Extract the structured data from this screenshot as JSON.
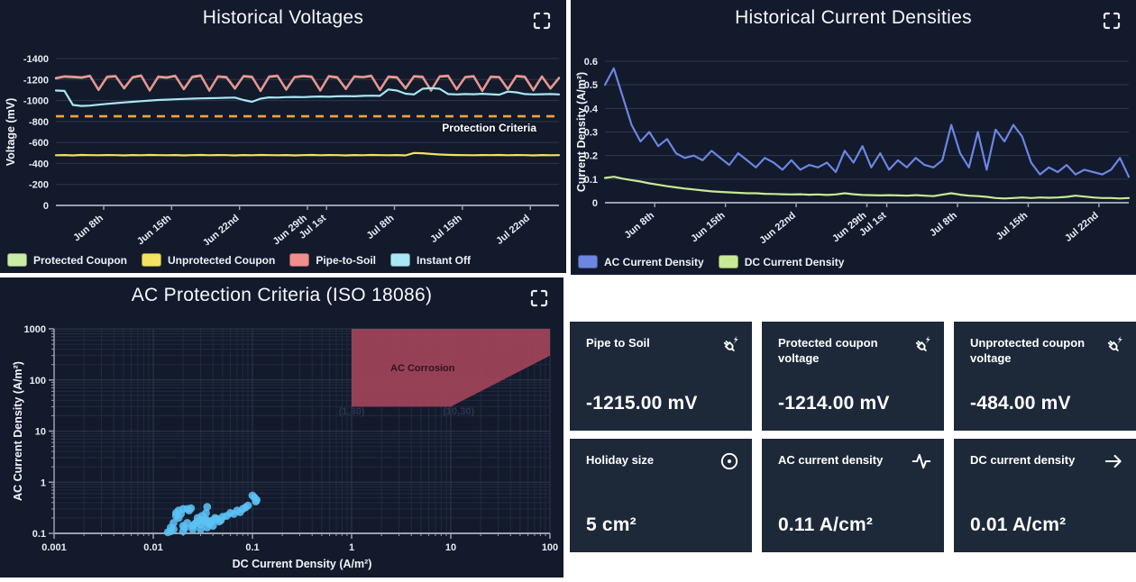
{
  "ui": {
    "page_bg": "#ffffff",
    "panel_bg": "#121a2c",
    "card_bg": "#1d2839",
    "grid_color": "#2e374c",
    "minor_grid_color": "#212a40",
    "axis_color": "#99a0b0"
  },
  "chart_data": [
    {
      "type": "line",
      "title": "Historical Voltages",
      "ylabel": "Voltage (mV)",
      "ytop": -1400,
      "ybottom": 0,
      "yticks": [
        {
          "v": -1400,
          "label": "-1400"
        },
        {
          "v": -1200,
          "label": "-1200"
        },
        {
          "v": -1000,
          "label": "-1000"
        },
        {
          "v": -800,
          "label": "-800"
        },
        {
          "v": -600,
          "label": "-600"
        },
        {
          "v": -400,
          "label": "-400"
        },
        {
          "v": -200,
          "label": "-200"
        },
        {
          "v": 0,
          "label": "0"
        }
      ],
      "xticks": [
        {
          "f": 0.095,
          "label": "Jun 8th"
        },
        {
          "f": 0.23,
          "label": "Jun 15th"
        },
        {
          "f": 0.365,
          "label": "Jun 22nd"
        },
        {
          "f": 0.5,
          "label": "Jun 29th"
        },
        {
          "f": 0.538,
          "label": "Jul 1st"
        },
        {
          "f": 0.673,
          "label": "Jul 8th"
        },
        {
          "f": 0.808,
          "label": "Jul 15th"
        },
        {
          "f": 0.943,
          "label": "Jul 22nd"
        }
      ],
      "threshold": {
        "value": -850,
        "label": "Protection Criteria",
        "color": "#f0a43c"
      },
      "series": [
        {
          "name": "Protected Coupon",
          "color": "#c9eca6",
          "values": [
            -1210,
            -1227,
            -1223,
            -1217,
            -1233,
            -1100,
            -1223,
            -1230,
            -1115,
            -1220,
            -1235,
            -1095,
            -1225,
            -1217,
            -1233,
            -1107,
            -1223,
            -1235,
            -1093,
            -1227,
            -1220,
            -1113,
            -1230,
            -1223,
            -1090,
            -1225,
            -1233,
            -1103,
            -1221,
            -1231,
            -1225,
            -1095,
            -1229,
            -1219,
            -1110,
            -1227,
            -1221,
            -1233,
            -1099,
            -1225,
            -1219,
            -1115,
            -1229,
            -1223,
            -1093,
            -1227,
            -1233,
            -1105,
            -1221,
            -1229,
            -1091,
            -1225,
            -1221,
            -1107,
            -1231,
            -1223,
            -1097,
            -1227,
            -1113,
            -1213
          ]
        },
        {
          "name": "Unprotected Coupon",
          "color": "#f3e25f",
          "values": [
            -478,
            -480,
            -477,
            -481,
            -479,
            -478,
            -480,
            -479,
            -477,
            -480,
            -478,
            -481,
            -479,
            -478,
            -480,
            -477,
            -479,
            -481,
            -478,
            -480,
            -479,
            -477,
            -480,
            -478,
            -481,
            -479,
            -478,
            -480,
            -477,
            -479,
            -481,
            -478,
            -480,
            -479,
            -477,
            -480,
            -478,
            -481,
            -479,
            -478,
            -480,
            -477,
            -500,
            -497,
            -490,
            -485,
            -482,
            -480,
            -479,
            -478,
            -480,
            -479,
            -481,
            -478,
            -480,
            -479,
            -477,
            -480,
            -478,
            -479
          ]
        },
        {
          "name": "Pipe-to-Soil",
          "color": "#f08d8d",
          "values": [
            -1215,
            -1232,
            -1228,
            -1222,
            -1238,
            -1105,
            -1228,
            -1235,
            -1120,
            -1225,
            -1240,
            -1100,
            -1230,
            -1222,
            -1238,
            -1112,
            -1228,
            -1240,
            -1098,
            -1232,
            -1225,
            -1118,
            -1235,
            -1228,
            -1095,
            -1230,
            -1238,
            -1108,
            -1226,
            -1236,
            -1230,
            -1100,
            -1234,
            -1224,
            -1115,
            -1232,
            -1226,
            -1238,
            -1104,
            -1230,
            -1224,
            -1120,
            -1234,
            -1228,
            -1098,
            -1232,
            -1238,
            -1110,
            -1226,
            -1234,
            -1096,
            -1230,
            -1226,
            -1112,
            -1236,
            -1228,
            -1102,
            -1232,
            -1118,
            -1218
          ]
        },
        {
          "name": "Instant Off",
          "color": "#a8e7f4",
          "values": [
            -1095,
            -1092,
            -958,
            -948,
            -952,
            -960,
            -968,
            -975,
            -982,
            -988,
            -994,
            -1000,
            -1005,
            -1008,
            -1012,
            -1015,
            -1018,
            -1020,
            -1022,
            -1024,
            -1026,
            -1028,
            -1005,
            -988,
            -1018,
            -1030,
            -1028,
            -1032,
            -1034,
            -1032,
            -1036,
            -1038,
            -1036,
            -1040,
            -1042,
            -1040,
            -1044,
            -1046,
            -1044,
            -1105,
            -1095,
            -1065,
            -1058,
            -1112,
            -1118,
            -1112,
            -1062,
            -1058,
            -1062,
            -1060,
            -1064,
            -1060,
            -1056,
            -1085,
            -1078,
            -1062,
            -1058,
            -1060,
            -1062,
            -1058
          ]
        }
      ]
    },
    {
      "type": "line",
      "title": "Historical Current Densities",
      "ylabel": "Current Density (A/m²)",
      "ytop": 0.6,
      "ybottom": 0,
      "yticks": [
        {
          "v": 0.6,
          "label": "0.6"
        },
        {
          "v": 0.5,
          "label": "0.5"
        },
        {
          "v": 0.4,
          "label": "0.4"
        },
        {
          "v": 0.3,
          "label": "0.3"
        },
        {
          "v": 0.2,
          "label": "0.2"
        },
        {
          "v": 0.1,
          "label": "0.1"
        },
        {
          "v": 0,
          "label": "0"
        }
      ],
      "xticks": [
        {
          "f": 0.095,
          "label": "Jun 8th"
        },
        {
          "f": 0.23,
          "label": "Jun 15th"
        },
        {
          "f": 0.365,
          "label": "Jun 22nd"
        },
        {
          "f": 0.5,
          "label": "Jun 29th"
        },
        {
          "f": 0.538,
          "label": "Jul 1st"
        },
        {
          "f": 0.673,
          "label": "Jul 8th"
        },
        {
          "f": 0.808,
          "label": "Jul 15th"
        },
        {
          "f": 0.943,
          "label": "Jul 22nd"
        }
      ],
      "threshold": null,
      "series": [
        {
          "name": "AC Current Density",
          "color": "#6c86e2",
          "values": [
            0.5,
            0.57,
            0.45,
            0.33,
            0.26,
            0.3,
            0.24,
            0.27,
            0.21,
            0.19,
            0.2,
            0.18,
            0.22,
            0.19,
            0.16,
            0.21,
            0.18,
            0.15,
            0.19,
            0.17,
            0.14,
            0.18,
            0.14,
            0.16,
            0.15,
            0.17,
            0.13,
            0.22,
            0.17,
            0.24,
            0.15,
            0.21,
            0.14,
            0.18,
            0.15,
            0.19,
            0.16,
            0.15,
            0.18,
            0.33,
            0.21,
            0.15,
            0.3,
            0.14,
            0.31,
            0.26,
            0.33,
            0.28,
            0.17,
            0.12,
            0.15,
            0.13,
            0.16,
            0.12,
            0.14,
            0.13,
            0.12,
            0.14,
            0.19,
            0.11
          ]
        },
        {
          "name": "DC Current Density",
          "color": "#c8ea94",
          "values": [
            0.105,
            0.11,
            0.102,
            0.096,
            0.09,
            0.082,
            0.076,
            0.07,
            0.065,
            0.06,
            0.056,
            0.052,
            0.048,
            0.046,
            0.044,
            0.042,
            0.04,
            0.04,
            0.038,
            0.037,
            0.036,
            0.035,
            0.036,
            0.034,
            0.035,
            0.033,
            0.035,
            0.04,
            0.036,
            0.033,
            0.032,
            0.031,
            0.032,
            0.031,
            0.03,
            0.032,
            0.03,
            0.028,
            0.034,
            0.04,
            0.034,
            0.03,
            0.028,
            0.025,
            0.02,
            0.018,
            0.02,
            0.022,
            0.02,
            0.022,
            0.021,
            0.022,
            0.025,
            0.03,
            0.026,
            0.022,
            0.02,
            0.02,
            0.018,
            0.02
          ]
        }
      ]
    },
    {
      "type": "scatter",
      "title": "AC Protection Criteria (ISO 18086)",
      "xlabel": "DC Current Density (A/m²)",
      "ylabel": "AC Current Density (A/m²)",
      "xlog": {
        "min": 0.001,
        "max": 100
      },
      "ylog": {
        "min": 0.1,
        "max": 1000
      },
      "xticks": [
        "0.001",
        "0.01",
        "0.1",
        "1",
        "10",
        "100"
      ],
      "yticks": [
        "0.1",
        "1",
        "10",
        "100",
        "1000"
      ],
      "region": {
        "label": "AC Corrosion",
        "color": "#a8455c",
        "points": [
          [
            1,
            30
          ],
          [
            1,
            1000
          ],
          [
            100,
            1000
          ],
          [
            100,
            300
          ],
          [
            10,
            30
          ]
        ]
      },
      "annotations": [
        {
          "text": "AC Corrosion",
          "x": 5.2,
          "y": 150,
          "color": "#33121d"
        },
        {
          "text": "(1,30)",
          "x": 1.0,
          "y": 21,
          "color": "#2c3550"
        },
        {
          "text": "(10,30)",
          "x": 12.0,
          "y": 21,
          "color": "#2c3550"
        }
      ],
      "scatter": {
        "color": "#5bc1f5",
        "points": [
          [
            0.014,
            0.105
          ],
          [
            0.015,
            0.11
          ],
          [
            0.015,
            0.13
          ],
          [
            0.016,
            0.12
          ],
          [
            0.016,
            0.16
          ],
          [
            0.017,
            0.22
          ],
          [
            0.017,
            0.25
          ],
          [
            0.018,
            0.28
          ],
          [
            0.018,
            0.2
          ],
          [
            0.019,
            0.24
          ],
          [
            0.02,
            0.3
          ],
          [
            0.02,
            0.14
          ],
          [
            0.021,
            0.13
          ],
          [
            0.022,
            0.3
          ],
          [
            0.022,
            0.16
          ],
          [
            0.023,
            0.28
          ],
          [
            0.024,
            0.31
          ],
          [
            0.025,
            0.14
          ],
          [
            0.026,
            0.15
          ],
          [
            0.027,
            0.16
          ],
          [
            0.028,
            0.17
          ],
          [
            0.028,
            0.2
          ],
          [
            0.03,
            0.18
          ],
          [
            0.03,
            0.15
          ],
          [
            0.031,
            0.22
          ],
          [
            0.032,
            0.17
          ],
          [
            0.033,
            0.19
          ],
          [
            0.034,
            0.25
          ],
          [
            0.035,
            0.33
          ],
          [
            0.035,
            0.18
          ],
          [
            0.036,
            0.16
          ],
          [
            0.037,
            0.15
          ],
          [
            0.038,
            0.17
          ],
          [
            0.04,
            0.18
          ],
          [
            0.042,
            0.2
          ],
          [
            0.044,
            0.19
          ],
          [
            0.046,
            0.17
          ],
          [
            0.048,
            0.18
          ],
          [
            0.05,
            0.21
          ],
          [
            0.055,
            0.22
          ],
          [
            0.06,
            0.25
          ],
          [
            0.065,
            0.24
          ],
          [
            0.07,
            0.28
          ],
          [
            0.075,
            0.26
          ],
          [
            0.08,
            0.3
          ],
          [
            0.085,
            0.32
          ],
          [
            0.09,
            0.35
          ],
          [
            0.1,
            0.55
          ],
          [
            0.105,
            0.5
          ],
          [
            0.11,
            0.45
          ],
          [
            0.108,
            0.42
          ],
          [
            0.02,
            0.11
          ],
          [
            0.025,
            0.12
          ],
          [
            0.03,
            0.12
          ],
          [
            0.035,
            0.13
          ],
          [
            0.04,
            0.14
          ]
        ]
      }
    }
  ],
  "cards": [
    {
      "label": "Pipe to Soil",
      "value": "-1215.00 mV",
      "icon": "plug-bolt-icon"
    },
    {
      "label": "Protected coupon voltage",
      "value": "-1214.00 mV",
      "icon": "plug-bolt-icon"
    },
    {
      "label": "Unprotected coupon voltage",
      "value": "-484.00 mV",
      "icon": "plug-bolt-icon"
    },
    {
      "label": "Holiday size",
      "value": "5 cm²",
      "icon": "circle-dot-icon"
    },
    {
      "label": "AC current density",
      "value": "0.11 A/cm²",
      "icon": "pulse-icon"
    },
    {
      "label": "DC current density",
      "value": "0.01 A/cm²",
      "icon": "arrow-right-icon"
    }
  ]
}
